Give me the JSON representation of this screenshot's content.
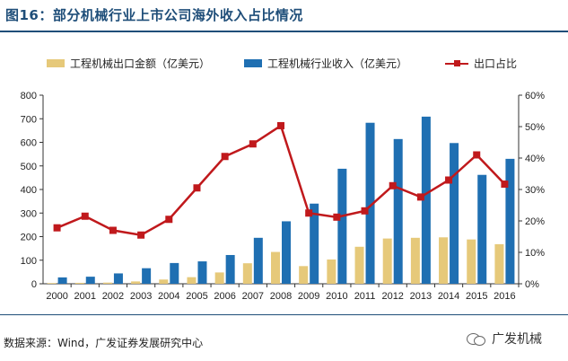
{
  "title": "图16：部分机械行业上市公司海外收入占比情况",
  "legend": {
    "export_label": "工程机械出口金额（亿美元）",
    "revenue_label": "工程机械行业收入（亿美元）",
    "ratio_label": "出口占比"
  },
  "source": "数据来源：Wind，广发证券发展研究中心",
  "watermark": "广发机械",
  "colors": {
    "export": "#e6c97a",
    "revenue": "#1f6fb2",
    "ratio": "#c0191c"
  },
  "chart_data": {
    "type": "bar",
    "categories": [
      "2000",
      "2001",
      "2002",
      "2003",
      "2004",
      "2005",
      "2006",
      "2007",
      "2008",
      "2009",
      "2010",
      "2011",
      "2012",
      "2013",
      "2014",
      "2015",
      "2016"
    ],
    "series": [
      {
        "name": "工程机械出口金额（亿美元）",
        "axis": "left",
        "values": [
          3,
          4,
          5,
          10,
          18,
          28,
          48,
          87,
          135,
          75,
          103,
          157,
          192,
          195,
          197,
          188,
          168
        ]
      },
      {
        "name": "工程机械行业收入（亿美元）",
        "axis": "left",
        "values": [
          27,
          30,
          44,
          66,
          88,
          95,
          122,
          195,
          265,
          340,
          488,
          683,
          614,
          709,
          597,
          462,
          530
        ]
      },
      {
        "name": "出口占比",
        "type": "line",
        "axis": "right",
        "values": [
          17.8,
          21.5,
          17,
          15.5,
          20.5,
          30.5,
          40.5,
          44.5,
          50.3,
          22.5,
          21.2,
          23.2,
          31.2,
          27.6,
          33,
          41,
          31.7
        ]
      }
    ],
    "y_left": {
      "ylim": [
        0,
        800
      ],
      "ticks": [
        0,
        100,
        200,
        300,
        400,
        500,
        600,
        700,
        800
      ]
    },
    "y_right": {
      "ylim": [
        0,
        60
      ],
      "ticks": [
        "0%",
        "10%",
        "20%",
        "30%",
        "40%",
        "50%",
        "60%"
      ]
    },
    "grid": false,
    "legend_position": "top"
  }
}
